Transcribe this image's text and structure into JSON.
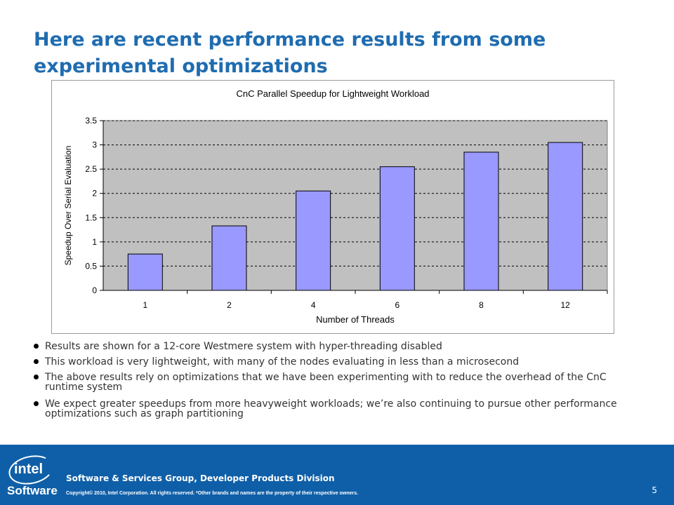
{
  "slide": {
    "title": "Here are recent performance results from some experimental optimizations",
    "page_number": "5"
  },
  "bullets": [
    "Results are shown for a 12-core Westmere system with hyper-threading disabled",
    "This workload is very lightweight, with many of the nodes evaluating in less than a microsecond",
    "The above results rely on optimizations that we have been experimenting with to reduce the overhead of the CnC runtime system",
    "We expect greater speedups from more heavyweight workloads; we’re also continuing to pursue other performance optimizations such as graph partitioning"
  ],
  "footer": {
    "logo_word": "intel",
    "logo_software": "Software",
    "division": "Software & Services Group, Developer Products Division",
    "copyright": "Copyright© 2010, Intel Corporation. All rights reserved. *Other brands and names are the property of their respective owners."
  },
  "colors": {
    "title": "#1f6cb0",
    "bar_fill": "#9999ff",
    "plot_bg": "#c0c0c0",
    "footer_bg": "#0f5fa8"
  },
  "chart_data": {
    "type": "bar",
    "title": "CnC Parallel Speedup for Lightweight Workload",
    "xlabel": "Number of Threads",
    "ylabel": "Speedup Over Serial Evaluation",
    "categories": [
      "1",
      "2",
      "4",
      "6",
      "8",
      "12"
    ],
    "values": [
      0.75,
      1.33,
      2.05,
      2.55,
      2.85,
      3.05
    ],
    "ylim": [
      0,
      3.5
    ],
    "yticks": [
      "0",
      "0.5",
      "1",
      "1.5",
      "2",
      "2.5",
      "3",
      "3.5"
    ],
    "grid": true,
    "legend": "none"
  }
}
